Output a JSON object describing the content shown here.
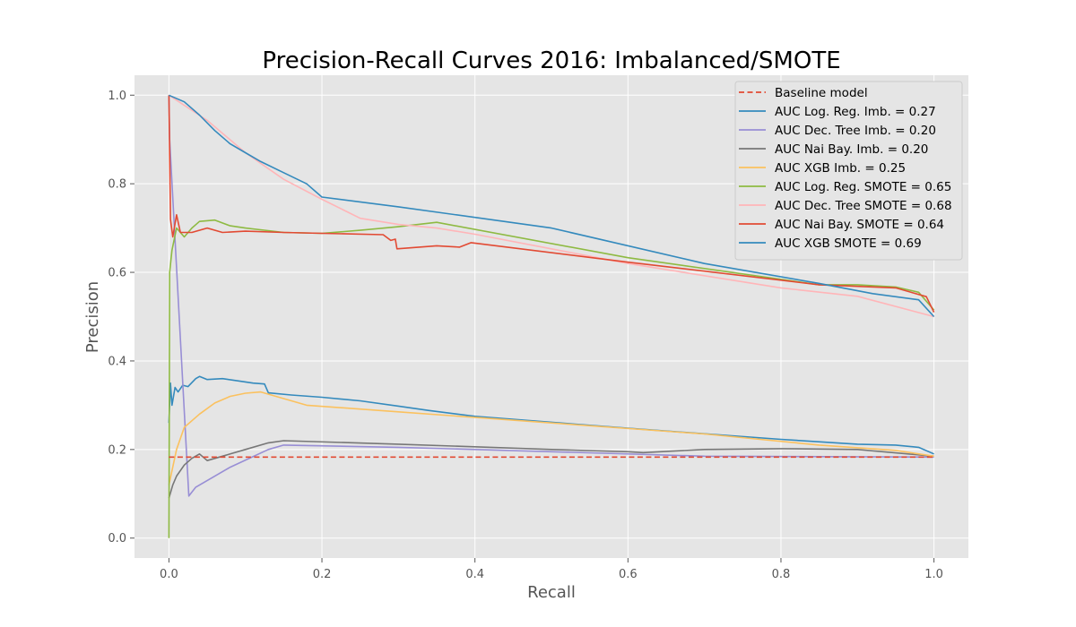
{
  "chart_data": {
    "type": "line",
    "title": "Precision-Recall Curves 2016: Imbalanced/SMOTE",
    "xlabel": "Recall",
    "ylabel": "Precision",
    "xlim": [
      -0.045,
      1.045
    ],
    "ylim": [
      -0.045,
      1.045
    ],
    "xticks": [
      0.0,
      0.2,
      0.4,
      0.6,
      0.8,
      1.0
    ],
    "yticks": [
      0.0,
      0.2,
      0.4,
      0.6,
      0.8,
      1.0
    ],
    "xtick_labels": [
      "0.0",
      "0.2",
      "0.4",
      "0.6",
      "0.8",
      "1.0"
    ],
    "ytick_labels": [
      "0.0",
      "0.2",
      "0.4",
      "0.6",
      "0.8",
      "1.0"
    ],
    "grid": true,
    "legend_position": "top-right",
    "series": [
      {
        "name": "Baseline model",
        "color": "#E24A33",
        "dashed": true,
        "points": [
          [
            0.0,
            0.183
          ],
          [
            1.0,
            0.183
          ]
        ]
      },
      {
        "name": "AUC Log. Reg. Imb. = 0.27",
        "color": "#348ABD",
        "points": [
          [
            0.0,
            0.26
          ],
          [
            0.002,
            0.35
          ],
          [
            0.004,
            0.3
          ],
          [
            0.008,
            0.34
          ],
          [
            0.012,
            0.33
          ],
          [
            0.018,
            0.345
          ],
          [
            0.025,
            0.342
          ],
          [
            0.035,
            0.36
          ],
          [
            0.04,
            0.365
          ],
          [
            0.05,
            0.358
          ],
          [
            0.07,
            0.36
          ],
          [
            0.09,
            0.355
          ],
          [
            0.11,
            0.35
          ],
          [
            0.125,
            0.348
          ],
          [
            0.13,
            0.328
          ],
          [
            0.16,
            0.323
          ],
          [
            0.2,
            0.318
          ],
          [
            0.25,
            0.31
          ],
          [
            0.3,
            0.298
          ],
          [
            0.34,
            0.288
          ],
          [
            0.4,
            0.275
          ],
          [
            0.6,
            0.248
          ],
          [
            0.8,
            0.223
          ],
          [
            0.9,
            0.212
          ],
          [
            0.95,
            0.21
          ],
          [
            0.98,
            0.205
          ],
          [
            1.0,
            0.19
          ]
        ]
      },
      {
        "name": "AUC Dec. Tree Imb. = 0.20",
        "color": "#988ED5",
        "points": [
          [
            0.0,
            1.0
          ],
          [
            0.001,
            0.9
          ],
          [
            0.026,
            0.095
          ],
          [
            0.035,
            0.115
          ],
          [
            0.08,
            0.16
          ],
          [
            0.13,
            0.2
          ],
          [
            0.15,
            0.21
          ],
          [
            0.3,
            0.205
          ],
          [
            0.5,
            0.195
          ],
          [
            0.7,
            0.185
          ],
          [
            1.0,
            0.183
          ]
        ]
      },
      {
        "name": "AUC Nai Bay. Imb. = 0.20",
        "color": "#777777",
        "points": [
          [
            0.0,
            0.09
          ],
          [
            0.005,
            0.12
          ],
          [
            0.01,
            0.14
          ],
          [
            0.02,
            0.165
          ],
          [
            0.03,
            0.18
          ],
          [
            0.04,
            0.19
          ],
          [
            0.05,
            0.175
          ],
          [
            0.07,
            0.185
          ],
          [
            0.1,
            0.2
          ],
          [
            0.13,
            0.215
          ],
          [
            0.15,
            0.22
          ],
          [
            0.3,
            0.212
          ],
          [
            0.5,
            0.2
          ],
          [
            0.6,
            0.195
          ],
          [
            0.62,
            0.193
          ],
          [
            0.7,
            0.2
          ],
          [
            0.8,
            0.202
          ],
          [
            0.9,
            0.2
          ],
          [
            1.0,
            0.185
          ]
        ]
      },
      {
        "name": "AUC XGB Imb. = 0.25",
        "color": "#FBC15E",
        "points": [
          [
            0.0,
            0.12
          ],
          [
            0.01,
            0.2
          ],
          [
            0.02,
            0.25
          ],
          [
            0.04,
            0.28
          ],
          [
            0.06,
            0.305
          ],
          [
            0.08,
            0.32
          ],
          [
            0.1,
            0.327
          ],
          [
            0.12,
            0.33
          ],
          [
            0.15,
            0.315
          ],
          [
            0.18,
            0.3
          ],
          [
            0.3,
            0.285
          ],
          [
            0.5,
            0.26
          ],
          [
            0.7,
            0.235
          ],
          [
            0.85,
            0.21
          ],
          [
            0.95,
            0.198
          ],
          [
            1.0,
            0.185
          ]
        ]
      },
      {
        "name": "AUC Log. Reg. SMOTE = 0.65",
        "color": "#8EBA42",
        "points": [
          [
            0.0,
            0.0
          ],
          [
            0.001,
            0.6
          ],
          [
            0.004,
            0.65
          ],
          [
            0.01,
            0.7
          ],
          [
            0.02,
            0.68
          ],
          [
            0.03,
            0.7
          ],
          [
            0.04,
            0.715
          ],
          [
            0.06,
            0.718
          ],
          [
            0.08,
            0.705
          ],
          [
            0.1,
            0.7
          ],
          [
            0.15,
            0.69
          ],
          [
            0.2,
            0.688
          ],
          [
            0.25,
            0.695
          ],
          [
            0.3,
            0.703
          ],
          [
            0.35,
            0.713
          ],
          [
            0.6,
            0.633
          ],
          [
            0.85,
            0.572
          ],
          [
            0.9,
            0.572
          ],
          [
            0.95,
            0.567
          ],
          [
            0.98,
            0.555
          ],
          [
            1.0,
            0.515
          ]
        ]
      },
      {
        "name": "AUC Dec. Tree SMOTE = 0.68",
        "color": "#FFB5B8",
        "points": [
          [
            0.0,
            1.0
          ],
          [
            0.05,
            0.943
          ],
          [
            0.1,
            0.87
          ],
          [
            0.15,
            0.81
          ],
          [
            0.2,
            0.765
          ],
          [
            0.25,
            0.722
          ],
          [
            0.3,
            0.708
          ],
          [
            0.35,
            0.7
          ],
          [
            0.4,
            0.686
          ],
          [
            0.6,
            0.62
          ],
          [
            0.8,
            0.565
          ],
          [
            0.9,
            0.546
          ],
          [
            1.0,
            0.5
          ]
        ]
      },
      {
        "name": "AUC Nai Bay. SMOTE = 0.64",
        "color": "#E24A33",
        "points": [
          [
            0.0,
            1.0
          ],
          [
            0.002,
            0.72
          ],
          [
            0.005,
            0.68
          ],
          [
            0.01,
            0.73
          ],
          [
            0.015,
            0.69
          ],
          [
            0.03,
            0.69
          ],
          [
            0.05,
            0.7
          ],
          [
            0.07,
            0.69
          ],
          [
            0.1,
            0.693
          ],
          [
            0.15,
            0.69
          ],
          [
            0.2,
            0.688
          ],
          [
            0.28,
            0.685
          ],
          [
            0.29,
            0.672
          ],
          [
            0.296,
            0.675
          ],
          [
            0.298,
            0.653
          ],
          [
            0.35,
            0.66
          ],
          [
            0.38,
            0.657
          ],
          [
            0.395,
            0.667
          ],
          [
            0.6,
            0.623
          ],
          [
            0.85,
            0.572
          ],
          [
            0.95,
            0.565
          ],
          [
            0.99,
            0.545
          ],
          [
            1.0,
            0.51
          ]
        ]
      },
      {
        "name": "AUC XGB SMOTE = 0.69",
        "color": "#348ABD",
        "points": [
          [
            0.0,
            1.0
          ],
          [
            0.02,
            0.985
          ],
          [
            0.04,
            0.955
          ],
          [
            0.06,
            0.92
          ],
          [
            0.08,
            0.89
          ],
          [
            0.1,
            0.87
          ],
          [
            0.12,
            0.85
          ],
          [
            0.15,
            0.825
          ],
          [
            0.18,
            0.8
          ],
          [
            0.2,
            0.77
          ],
          [
            0.3,
            0.748
          ],
          [
            0.5,
            0.7
          ],
          [
            0.7,
            0.62
          ],
          [
            0.85,
            0.575
          ],
          [
            0.92,
            0.552
          ],
          [
            0.98,
            0.538
          ],
          [
            1.0,
            0.5
          ]
        ]
      }
    ]
  }
}
